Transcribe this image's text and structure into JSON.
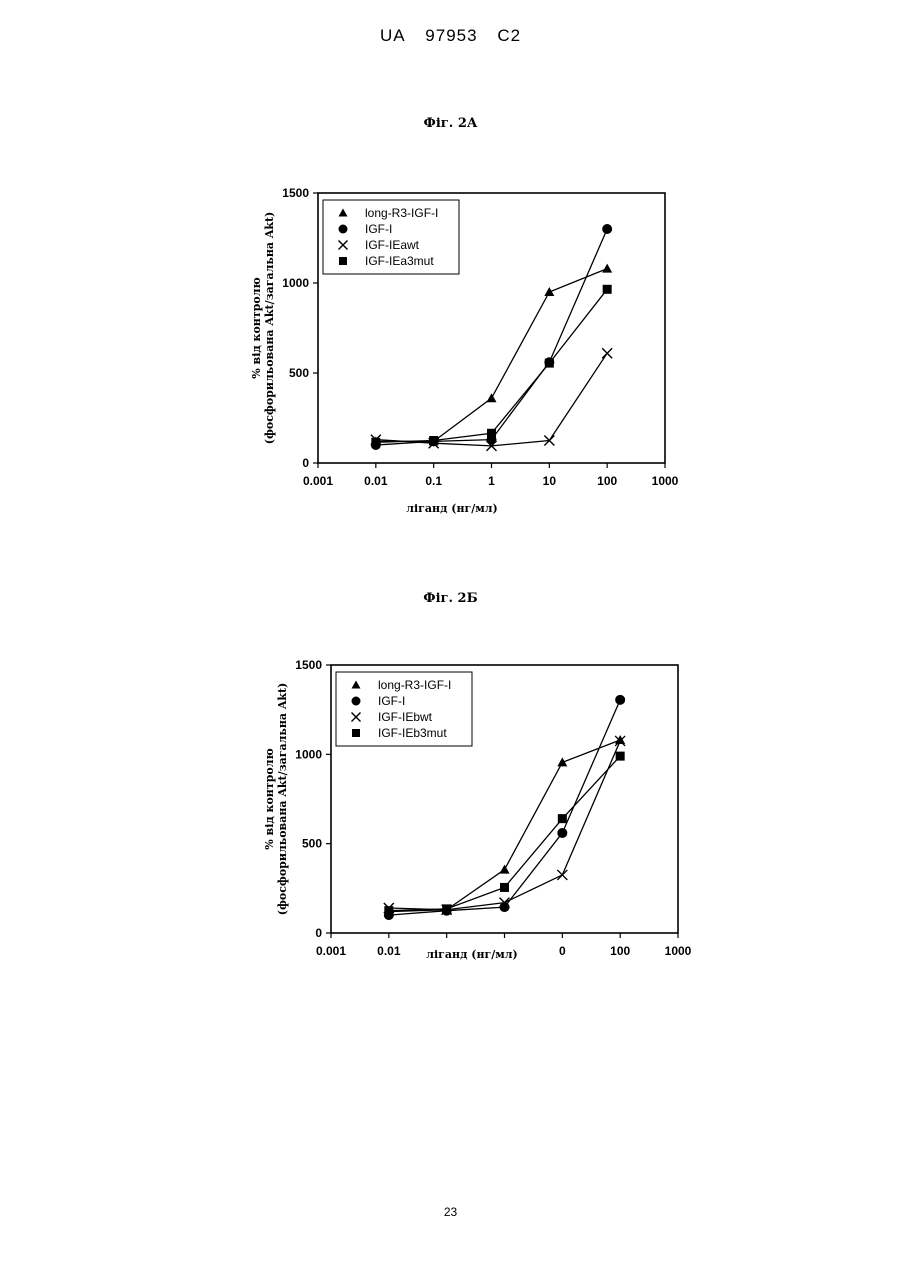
{
  "header": {
    "country": "UA",
    "number": "97953",
    "kind": "C2"
  },
  "page_number": "23",
  "chart_data": [
    {
      "type": "line",
      "title": "Фіг. 2А",
      "xlabel": "ліганд (нг/мл)",
      "ylabel_line1": "% від контролю",
      "ylabel_line2": "(фосфорильована Akt/загальна Akt)",
      "x_scale": "log",
      "xlim": [
        0.001,
        1000
      ],
      "ylim": [
        0,
        1500
      ],
      "x_tick_labels": [
        "0.001",
        "0.01",
        "0.1",
        "1",
        "10",
        "100",
        "1000"
      ],
      "y_tick_labels": [
        "0",
        "500",
        "1000",
        "1500"
      ],
      "legend_position": "top-left",
      "series": [
        {
          "name": "long-R3-IGF-I",
          "marker": "triangle",
          "x": [
            0.01,
            0.1,
            1,
            10,
            100
          ],
          "y": [
            120,
            120,
            360,
            950,
            1080
          ]
        },
        {
          "name": "IGF-I",
          "marker": "circle",
          "x": [
            0.01,
            0.1,
            1,
            10,
            100
          ],
          "y": [
            100,
            120,
            130,
            560,
            1300
          ]
        },
        {
          "name": "IGF-IEawt",
          "marker": "x",
          "x": [
            0.01,
            0.1,
            1,
            10,
            100
          ],
          "y": [
            130,
            110,
            95,
            125,
            610
          ]
        },
        {
          "name": "IGF-IEa3mut",
          "marker": "square",
          "x": [
            0.01,
            0.1,
            1,
            10,
            100
          ],
          "y": [
            115,
            125,
            165,
            555,
            965
          ]
        }
      ]
    },
    {
      "type": "line",
      "title": "Фіг. 2Б",
      "xlabel": "ліганд (нг/мл)",
      "ylabel_line1": "% від контролю",
      "ylabel_line2": "(фосфорильована Akt/загальна Akt)",
      "x_scale": "log",
      "xlim": [
        0.001,
        1000
      ],
      "ylim": [
        0,
        1500
      ],
      "x_tick_labels": [
        "0.001",
        "0.01",
        "",
        "",
        "0",
        "100",
        "1000"
      ],
      "y_tick_labels": [
        "0",
        "500",
        "1000",
        "1500"
      ],
      "legend_position": "top-left",
      "series": [
        {
          "name": "long-R3-IGF-I",
          "marker": "triangle",
          "x": [
            0.01,
            0.1,
            1,
            10,
            100
          ],
          "y": [
            120,
            130,
            355,
            955,
            1080
          ]
        },
        {
          "name": "IGF-I",
          "marker": "circle",
          "x": [
            0.01,
            0.1,
            1,
            10,
            100
          ],
          "y": [
            100,
            125,
            145,
            560,
            1305
          ]
        },
        {
          "name": "IGF-IEbwt",
          "marker": "x",
          "x": [
            0.01,
            0.1,
            1,
            10,
            100
          ],
          "y": [
            140,
            130,
            170,
            325,
            1075
          ]
        },
        {
          "name": "IGF-IEb3mut",
          "marker": "square",
          "x": [
            0.01,
            0.1,
            1,
            10,
            100
          ],
          "y": [
            125,
            135,
            255,
            640,
            990
          ]
        }
      ]
    }
  ]
}
